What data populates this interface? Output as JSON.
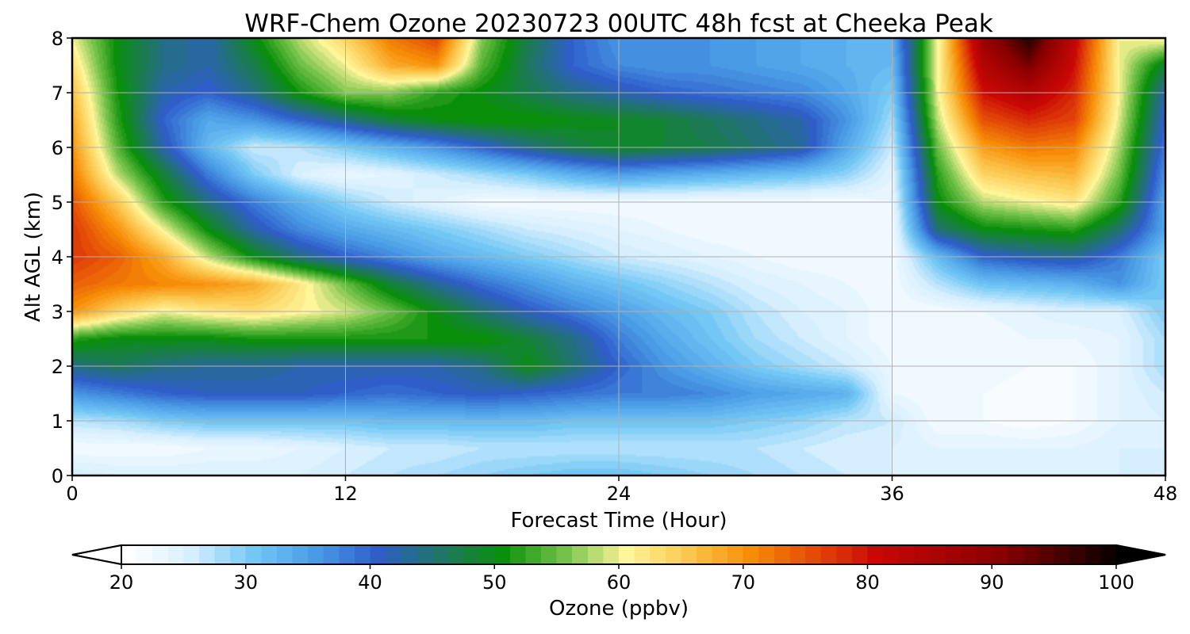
{
  "chart_data": {
    "type": "heatmap",
    "title": "WRF-Chem Ozone  20230723 00UTC 48h fcst at Cheeka Peak",
    "xlabel": "Forecast Time (Hour)",
    "ylabel": "Alt AGL (km)",
    "xlim": [
      0,
      48
    ],
    "ylim": [
      0,
      8
    ],
    "xticks": [
      "0",
      "12",
      "24",
      "36",
      "48"
    ],
    "yticks": [
      "0",
      "1",
      "2",
      "3",
      "4",
      "5",
      "6",
      "7",
      "8"
    ],
    "grid": true,
    "x_hours": [
      0,
      2,
      4,
      6,
      8,
      10,
      12,
      14,
      16,
      18,
      20,
      22,
      24,
      26,
      28,
      30,
      32,
      34,
      36,
      38,
      40,
      42,
      44,
      46,
      48
    ],
    "z_km": [
      0,
      0.5,
      1,
      1.5,
      2,
      2.5,
      3,
      3.5,
      4,
      4.5,
      5,
      5.5,
      6,
      6.5,
      7,
      7.5,
      8
    ],
    "ozone_ppbv": [
      [
        26,
        25,
        25,
        25,
        25,
        25,
        26,
        27,
        28,
        29,
        30,
        31,
        31,
        30,
        29,
        28,
        27,
        26,
        25,
        24,
        24,
        24,
        25,
        25,
        25
      ],
      [
        22,
        22,
        22,
        23,
        23,
        24,
        25,
        26,
        26,
        27,
        27,
        27,
        27,
        27,
        27,
        27,
        26,
        25,
        25,
        24,
        24,
        24,
        24,
        25,
        25
      ],
      [
        27,
        28,
        30,
        31,
        31,
        31,
        31,
        32,
        32,
        32,
        32,
        31,
        31,
        31,
        31,
        30,
        29,
        27,
        26,
        22,
        22,
        21,
        22,
        24,
        25
      ],
      [
        36,
        38,
        40,
        41,
        41,
        41,
        40,
        39,
        40,
        41,
        40,
        39,
        38,
        38,
        37,
        35,
        34,
        33,
        23,
        22,
        22,
        21,
        22,
        24,
        26
      ],
      [
        44,
        46,
        44,
        43,
        43,
        42,
        42,
        42,
        42,
        44,
        50,
        45,
        40,
        36,
        33,
        30,
        28,
        26,
        23,
        22,
        23,
        22,
        22,
        24,
        28
      ],
      [
        52,
        50,
        50,
        50,
        51,
        51,
        51,
        51,
        51,
        51,
        48,
        44,
        38,
        34,
        31,
        28,
        26,
        24,
        22,
        22,
        22,
        23,
        23,
        24,
        28
      ],
      [
        70,
        64,
        60,
        62,
        63,
        61,
        59,
        55,
        50,
        45,
        41,
        38,
        35,
        32,
        30,
        27,
        25,
        24,
        22,
        22,
        23,
        24,
        25,
        25,
        30
      ],
      [
        74,
        72,
        71,
        70,
        68,
        62,
        55,
        48,
        43,
        39,
        36,
        33,
        31,
        29,
        27,
        25,
        24,
        23,
        22,
        27,
        31,
        32,
        33,
        36,
        30
      ],
      [
        77,
        74,
        68,
        58,
        50,
        44,
        40,
        37,
        34,
        32,
        30,
        28,
        26,
        25,
        24,
        23,
        22,
        22,
        22,
        32,
        40,
        42,
        43,
        38,
        30
      ],
      [
        77,
        70,
        60,
        50,
        42,
        37,
        34,
        32,
        30,
        28,
        26,
        25,
        24,
        23,
        22,
        22,
        22,
        22,
        22,
        45,
        50,
        51,
        52,
        45,
        34
      ],
      [
        75,
        65,
        52,
        44,
        38,
        33,
        29,
        26,
        24,
        22,
        22,
        22,
        22,
        22,
        22,
        22,
        22,
        22,
        23,
        50,
        58,
        60,
        62,
        52,
        34
      ],
      [
        72,
        58,
        48,
        38,
        30,
        25,
        23,
        24,
        26,
        28,
        30,
        33,
        35,
        34,
        33,
        32,
        31,
        29,
        24,
        52,
        64,
        66,
        67,
        55,
        36
      ],
      [
        70,
        54,
        42,
        32,
        26,
        27,
        30,
        33,
        36,
        40,
        44,
        47,
        49,
        48,
        47,
        45,
        43,
        34,
        26,
        55,
        69,
        72,
        71,
        57,
        38
      ],
      [
        68,
        52,
        40,
        34,
        36,
        40,
        44,
        48,
        50,
        51,
        51,
        50,
        49,
        48,
        46,
        44,
        42,
        36,
        28,
        58,
        75,
        78,
        76,
        59,
        40
      ],
      [
        66,
        51,
        42,
        40,
        44,
        51,
        56,
        56,
        52,
        50,
        47,
        44,
        42,
        40,
        39,
        38,
        37,
        34,
        30,
        60,
        80,
        84,
        78,
        60,
        42
      ],
      [
        63,
        50,
        44,
        42,
        47,
        55,
        60,
        68,
        70,
        54,
        46,
        40,
        37,
        36,
        36,
        35,
        34,
        33,
        32,
        60,
        84,
        92,
        80,
        60,
        48
      ],
      [
        60,
        50,
        44,
        42,
        50,
        58,
        64,
        72,
        76,
        56,
        47,
        40,
        36,
        36,
        36,
        35,
        34,
        33,
        33,
        60,
        88,
        98,
        82,
        60,
        62
      ]
    ],
    "colorbar": {
      "label": "Ozone  (ppbv)",
      "ticks": [
        "20",
        "30",
        "40",
        "50",
        "60",
        "70",
        "80",
        "90",
        "100"
      ],
      "min": 20,
      "max": 100,
      "extend": "both",
      "stops": [
        {
          "v": 20,
          "c": "#ffffff"
        },
        {
          "v": 25,
          "c": "#d6efff"
        },
        {
          "v": 30,
          "c": "#72c7f5"
        },
        {
          "v": 35,
          "c": "#4a9be6"
        },
        {
          "v": 40,
          "c": "#2f5ec9"
        },
        {
          "v": 45,
          "c": "#1f7566"
        },
        {
          "v": 50,
          "c": "#0a8f0a"
        },
        {
          "v": 55,
          "c": "#74c24a"
        },
        {
          "v": 60,
          "c": "#fff599"
        },
        {
          "v": 65,
          "c": "#fbc64d"
        },
        {
          "v": 70,
          "c": "#f78d06"
        },
        {
          "v": 75,
          "c": "#e44b07"
        },
        {
          "v": 80,
          "c": "#c90806"
        },
        {
          "v": 90,
          "c": "#8a0000"
        },
        {
          "v": 100,
          "c": "#000000"
        }
      ]
    }
  }
}
